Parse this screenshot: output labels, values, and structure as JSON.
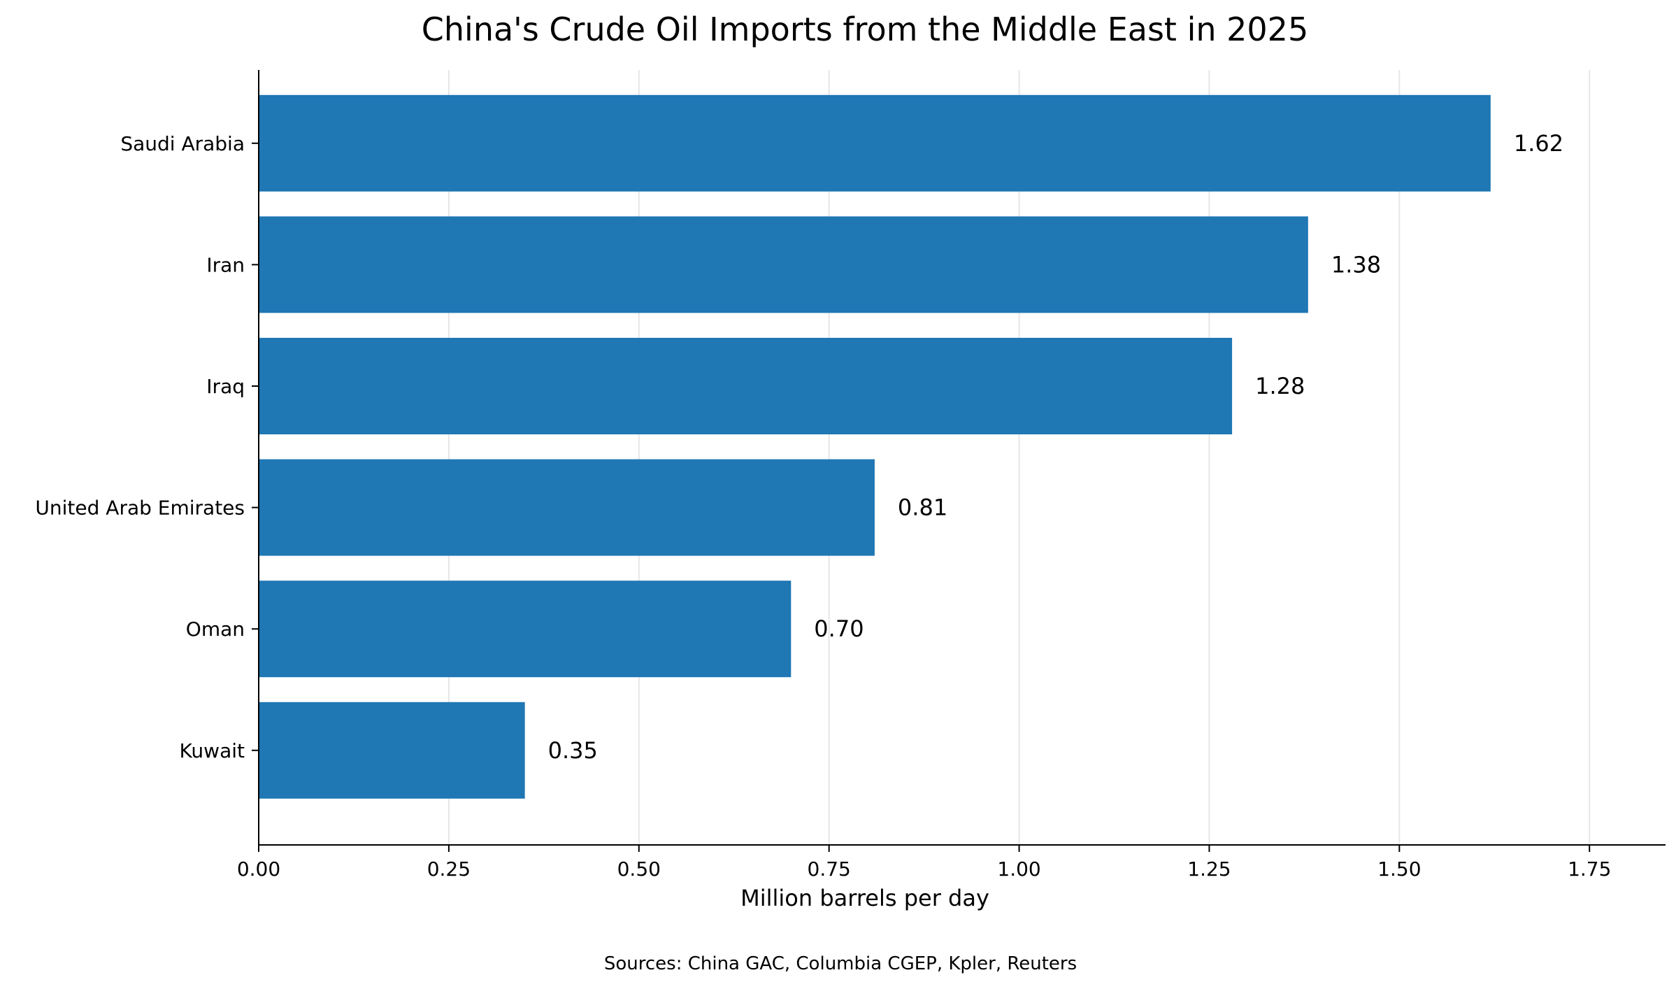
{
  "chart_data": {
    "type": "bar",
    "orientation": "horizontal",
    "title": "China's Crude Oil Imports from the Middle East in 2025",
    "xlabel": "Million barrels per day",
    "ylabel": "",
    "categories": [
      "Saudi Arabia",
      "Iran",
      "Iraq",
      "United Arab Emirates",
      "Oman",
      "Kuwait"
    ],
    "values": [
      1.62,
      1.38,
      1.28,
      0.81,
      0.7,
      0.35
    ],
    "value_labels": [
      "1.62",
      "1.38",
      "1.28",
      "0.81",
      "0.70",
      "0.35"
    ],
    "xlim": [
      0,
      1.85
    ],
    "x_ticks": [
      0.0,
      0.25,
      0.5,
      0.75,
      1.0,
      1.25,
      1.5,
      1.75
    ],
    "x_tick_labels": [
      "0.00",
      "0.25",
      "0.50",
      "0.75",
      "1.00",
      "1.25",
      "1.50",
      "1.75"
    ],
    "grid": "vertical",
    "legend": "none",
    "bar_color": "#1f77b4",
    "grid_color": "#e6e6e6",
    "source_note": "Sources: China GAC, Columbia CGEP, Kpler, Reuters"
  }
}
